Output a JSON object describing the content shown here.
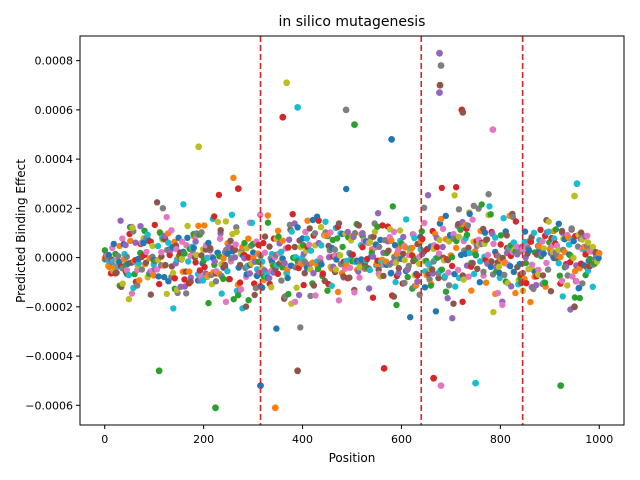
{
  "chart_data": {
    "type": "scatter",
    "title": "in silico mutagenesis",
    "xlabel": "Position",
    "ylabel": "Predicted Binding Effect",
    "xlim": [
      -50,
      1050
    ],
    "ylim": [
      -0.00068,
      0.0009
    ],
    "x_ticks": [
      0,
      200,
      400,
      600,
      800,
      1000
    ],
    "x_tick_labels": [
      "0",
      "200",
      "400",
      "600",
      "800",
      "1000"
    ],
    "y_ticks": [
      -0.0006,
      -0.0004,
      -0.0002,
      0.0,
      0.0002,
      0.0004,
      0.0006,
      0.0008
    ],
    "y_tick_labels": [
      "−0.0006",
      "−0.0004",
      "−0.0002",
      "0.0000",
      "0.0002",
      "0.0004",
      "0.0006",
      "0.0008"
    ],
    "grid": false,
    "vlines": [
      {
        "x": 315,
        "color": "#d62728",
        "style": "dashed"
      },
      {
        "x": 640,
        "color": "#d62728",
        "style": "dashed"
      },
      {
        "x": 845,
        "color": "#d62728",
        "style": "dashed"
      }
    ],
    "palette": [
      "#1f77b4",
      "#ff7f0e",
      "#2ca02c",
      "#d62728",
      "#9467bd",
      "#8c564b",
      "#e377c2",
      "#7f7f7f",
      "#bcbd22",
      "#17becf"
    ],
    "series_generation": {
      "positions": [
        0,
        1000
      ],
      "points_per_position": 3,
      "sample_step": 3
    },
    "highlight_points": [
      {
        "x": 224,
        "y": -0.00061,
        "color": "#2ca02c"
      },
      {
        "x": 345,
        "y": -0.00061,
        "color": "#ff7f0e"
      },
      {
        "x": 315,
        "y": -0.00052,
        "color": "#1f77b4"
      },
      {
        "x": 110,
        "y": -0.00046,
        "color": "#2ca02c"
      },
      {
        "x": 390,
        "y": -0.00046,
        "color": "#8c564b"
      },
      {
        "x": 680,
        "y": -0.00052,
        "color": "#e377c2"
      },
      {
        "x": 750,
        "y": -0.00051,
        "color": "#17becf"
      },
      {
        "x": 922,
        "y": -0.00052,
        "color": "#2ca02c"
      },
      {
        "x": 665,
        "y": -0.00049,
        "color": "#d62728"
      },
      {
        "x": 565,
        "y": -0.00045,
        "color": "#d62728"
      },
      {
        "x": 190,
        "y": 0.00045,
        "color": "#bcbd22"
      },
      {
        "x": 368,
        "y": 0.00071,
        "color": "#bcbd22"
      },
      {
        "x": 360,
        "y": 0.00057,
        "color": "#d62728"
      },
      {
        "x": 390,
        "y": 0.00061,
        "color": "#17becf"
      },
      {
        "x": 488,
        "y": 0.0006,
        "color": "#7f7f7f"
      },
      {
        "x": 505,
        "y": 0.00054,
        "color": "#2ca02c"
      },
      {
        "x": 677,
        "y": 0.00083,
        "color": "#9467bd"
      },
      {
        "x": 680,
        "y": 0.00078,
        "color": "#7f7f7f"
      },
      {
        "x": 677,
        "y": 0.00067,
        "color": "#9467bd"
      },
      {
        "x": 678,
        "y": 0.0007,
        "color": "#8c564b"
      },
      {
        "x": 722,
        "y": 0.0006,
        "color": "#d62728"
      },
      {
        "x": 724,
        "y": 0.00059,
        "color": "#8c564b"
      },
      {
        "x": 785,
        "y": 0.00052,
        "color": "#e377c2"
      },
      {
        "x": 580,
        "y": 0.00048,
        "color": "#1f77b4"
      },
      {
        "x": 270,
        "y": 0.00028,
        "color": "#d62728"
      },
      {
        "x": 950,
        "y": 0.00025,
        "color": "#bcbd22"
      },
      {
        "x": 955,
        "y": 0.0003,
        "color": "#17becf"
      },
      {
        "x": 950,
        "y": -0.0002,
        "color": "#8c564b"
      }
    ]
  }
}
